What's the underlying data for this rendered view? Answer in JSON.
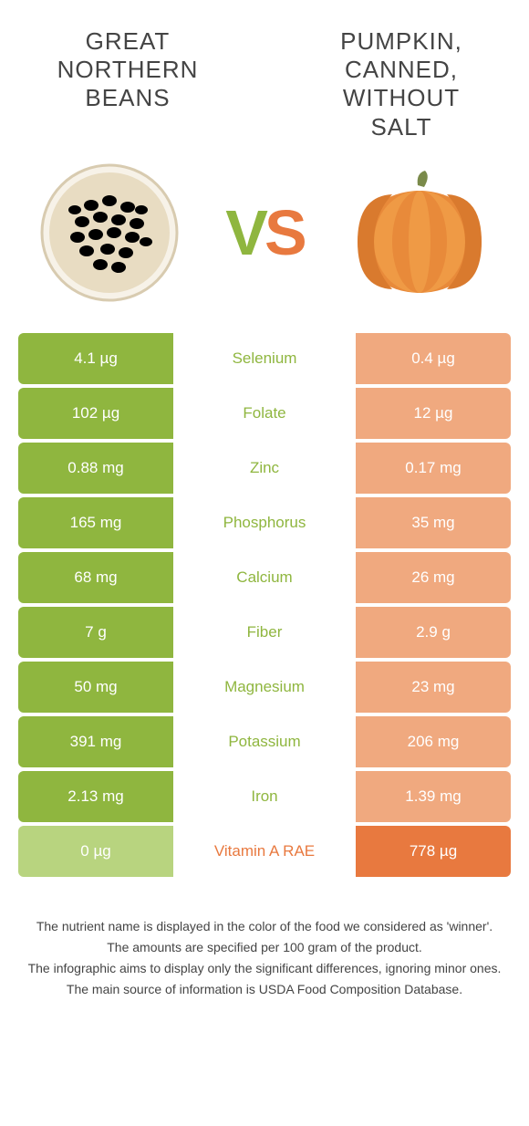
{
  "colors": {
    "left": "#8fb63f",
    "right": "#e8793f",
    "left_dim": "#b8d47f",
    "right_dim": "#f0a97f"
  },
  "foods": {
    "left": {
      "title": "GREAT NORTHERN BEANS"
    },
    "right": {
      "title": "PUMPKIN, CANNED, WITHOUT SALT"
    }
  },
  "vs": {
    "v": "V",
    "s": "S"
  },
  "rows": [
    {
      "nutrient": "Selenium",
      "left": "4.1 µg",
      "right": "0.4 µg",
      "winner": "left"
    },
    {
      "nutrient": "Folate",
      "left": "102 µg",
      "right": "12 µg",
      "winner": "left"
    },
    {
      "nutrient": "Zinc",
      "left": "0.88 mg",
      "right": "0.17 mg",
      "winner": "left"
    },
    {
      "nutrient": "Phosphorus",
      "left": "165 mg",
      "right": "35 mg",
      "winner": "left"
    },
    {
      "nutrient": "Calcium",
      "left": "68 mg",
      "right": "26 mg",
      "winner": "left"
    },
    {
      "nutrient": "Fiber",
      "left": "7 g",
      "right": "2.9 g",
      "winner": "left"
    },
    {
      "nutrient": "Magnesium",
      "left": "50 mg",
      "right": "23 mg",
      "winner": "left"
    },
    {
      "nutrient": "Potassium",
      "left": "391 mg",
      "right": "206 mg",
      "winner": "left"
    },
    {
      "nutrient": "Iron",
      "left": "2.13 mg",
      "right": "1.39 mg",
      "winner": "left"
    },
    {
      "nutrient": "Vitamin A RAE",
      "left": "0 µg",
      "right": "778 µg",
      "winner": "right"
    }
  ],
  "footer": [
    "The nutrient name is displayed in the color of the food we considered as 'winner'.",
    "The amounts are specified per 100 gram of the product.",
    "The infographic aims to display only the significant differences, ignoring minor ones.",
    "The main source of information is USDA Food Composition Database."
  ]
}
